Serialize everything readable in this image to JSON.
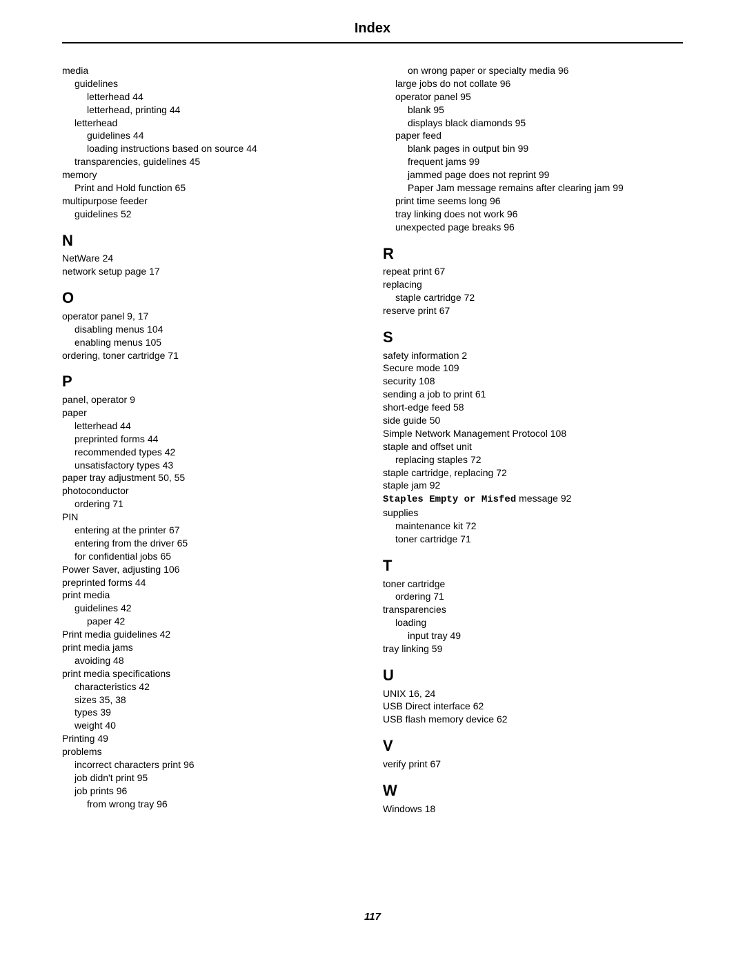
{
  "title": "Index",
  "page_number": "117",
  "left_column": {
    "top_entries": [
      {
        "t": "media",
        "i": 0
      },
      {
        "t": "guidelines",
        "i": 1
      },
      {
        "t": "letterhead  44",
        "i": 2
      },
      {
        "t": "letterhead, printing  44",
        "i": 2
      },
      {
        "t": "letterhead",
        "i": 1
      },
      {
        "t": "guidelines  44",
        "i": 2
      },
      {
        "t": "loading instructions based on source  44",
        "i": 2
      },
      {
        "t": "transparencies, guidelines  45",
        "i": 1
      },
      {
        "t": "memory",
        "i": 0
      },
      {
        "t": "Print and Hold function  65",
        "i": 1
      },
      {
        "t": "multipurpose feeder",
        "i": 0
      },
      {
        "t": "guidelines  52",
        "i": 1
      }
    ],
    "sections": [
      {
        "letter": "N",
        "entries": [
          {
            "t": "NetWare  24",
            "i": 0
          },
          {
            "t": "network setup page  17",
            "i": 0
          }
        ]
      },
      {
        "letter": "O",
        "entries": [
          {
            "t": "operator panel  9, 17",
            "i": 0
          },
          {
            "t": "disabling menus  104",
            "i": 1
          },
          {
            "t": "enabling menus  105",
            "i": 1
          },
          {
            "t": "ordering, toner cartridge  71",
            "i": 0
          }
        ]
      },
      {
        "letter": "P",
        "entries": [
          {
            "t": "panel, operator  9",
            "i": 0
          },
          {
            "t": "paper",
            "i": 0
          },
          {
            "t": "letterhead  44",
            "i": 1
          },
          {
            "t": "preprinted forms  44",
            "i": 1
          },
          {
            "t": "recommended types  42",
            "i": 1
          },
          {
            "t": "unsatisfactory types  43",
            "i": 1
          },
          {
            "t": "paper tray adjustment  50, 55",
            "i": 0
          },
          {
            "t": "photoconductor",
            "i": 0
          },
          {
            "t": "ordering  71",
            "i": 1
          },
          {
            "t": "PIN",
            "i": 0
          },
          {
            "t": "entering at the printer  67",
            "i": 1
          },
          {
            "t": "entering from the driver  65",
            "i": 1
          },
          {
            "t": "for confidential jobs  65",
            "i": 1
          },
          {
            "t": "Power Saver, adjusting  106",
            "i": 0
          },
          {
            "t": "preprinted forms  44",
            "i": 0
          },
          {
            "t": "print media",
            "i": 0
          },
          {
            "t": "guidelines  42",
            "i": 1
          },
          {
            "t": "paper  42",
            "i": 2
          },
          {
            "t": "Print media guidelines  42",
            "i": 0
          },
          {
            "t": "print media jams",
            "i": 0
          },
          {
            "t": "avoiding  48",
            "i": 1
          },
          {
            "t": "print media specifications",
            "i": 0
          },
          {
            "t": "characteristics  42",
            "i": 1
          },
          {
            "t": "sizes  35, 38",
            "i": 1
          },
          {
            "t": "types  39",
            "i": 1
          },
          {
            "t": "weight  40",
            "i": 1
          },
          {
            "t": "Printing  49",
            "i": 0
          },
          {
            "t": "problems",
            "i": 0
          },
          {
            "t": "incorrect characters print  96",
            "i": 1
          },
          {
            "t": "job didn't print  95",
            "i": 1
          },
          {
            "t": "job prints  96",
            "i": 1
          },
          {
            "t": "from wrong tray  96",
            "i": 2
          }
        ]
      }
    ]
  },
  "right_column": {
    "top_entries": [
      {
        "t": "on wrong paper or specialty media  96",
        "i": 2
      },
      {
        "t": "large jobs do not collate  96",
        "i": 1
      },
      {
        "t": "operator panel  95",
        "i": 1
      },
      {
        "t": "blank  95",
        "i": 2
      },
      {
        "t": "displays black diamonds  95",
        "i": 2
      },
      {
        "t": "paper feed",
        "i": 1
      },
      {
        "t": "blank pages in output bin  99",
        "i": 2
      },
      {
        "t": "frequent jams  99",
        "i": 2
      },
      {
        "t": "jammed page does not reprint  99",
        "i": 2
      },
      {
        "t": "Paper Jam message remains after clearing jam  99",
        "i": 2
      },
      {
        "t": "print time seems long  96",
        "i": 1
      },
      {
        "t": "tray linking does not work  96",
        "i": 1
      },
      {
        "t": "unexpected page breaks  96",
        "i": 1
      }
    ],
    "sections": [
      {
        "letter": "R",
        "entries": [
          {
            "t": "repeat print  67",
            "i": 0
          },
          {
            "t": "replacing",
            "i": 0
          },
          {
            "t": "staple cartridge  72",
            "i": 1
          },
          {
            "t": "reserve print  67",
            "i": 0
          }
        ]
      },
      {
        "letter": "S",
        "entries": [
          {
            "t": "safety information  2",
            "i": 0
          },
          {
            "t": "Secure mode  109",
            "i": 0
          },
          {
            "t": "security  108",
            "i": 0
          },
          {
            "t": "sending a job to print  61",
            "i": 0
          },
          {
            "t": "short-edge feed  58",
            "i": 0
          },
          {
            "t": "side guide  50",
            "i": 0
          },
          {
            "t": "Simple Network Management Protocol  108",
            "i": 0
          },
          {
            "t": "staple and offset unit",
            "i": 0
          },
          {
            "t": "replacing staples  72",
            "i": 1
          },
          {
            "t": "staple cartridge, replacing  72",
            "i": 0
          },
          {
            "t": "staple jam  92",
            "i": 0
          },
          {
            "special": "staples",
            "i": 0
          },
          {
            "t": "supplies",
            "i": 0
          },
          {
            "t": "maintenance kit  72",
            "i": 1
          },
          {
            "t": "toner cartridge  71",
            "i": 1
          }
        ]
      },
      {
        "letter": "T",
        "entries": [
          {
            "t": "toner cartridge",
            "i": 0
          },
          {
            "t": "ordering  71",
            "i": 1
          },
          {
            "t": "transparencies",
            "i": 0
          },
          {
            "t": "loading",
            "i": 1
          },
          {
            "t": "input tray  49",
            "i": 2
          },
          {
            "t": "tray linking  59",
            "i": 0
          }
        ]
      },
      {
        "letter": "U",
        "entries": [
          {
            "t": "UNIX  16, 24",
            "i": 0
          },
          {
            "t": "USB Direct interface  62",
            "i": 0
          },
          {
            "t": "USB flash memory device  62",
            "i": 0
          }
        ]
      },
      {
        "letter": "V",
        "entries": [
          {
            "t": "verify print  67",
            "i": 0
          }
        ]
      },
      {
        "letter": "W",
        "entries": [
          {
            "t": "Windows  18",
            "i": 0
          }
        ]
      }
    ]
  },
  "staples_special": {
    "bold_part": "Staples Empty or Misfed",
    "rest": " message  92"
  }
}
